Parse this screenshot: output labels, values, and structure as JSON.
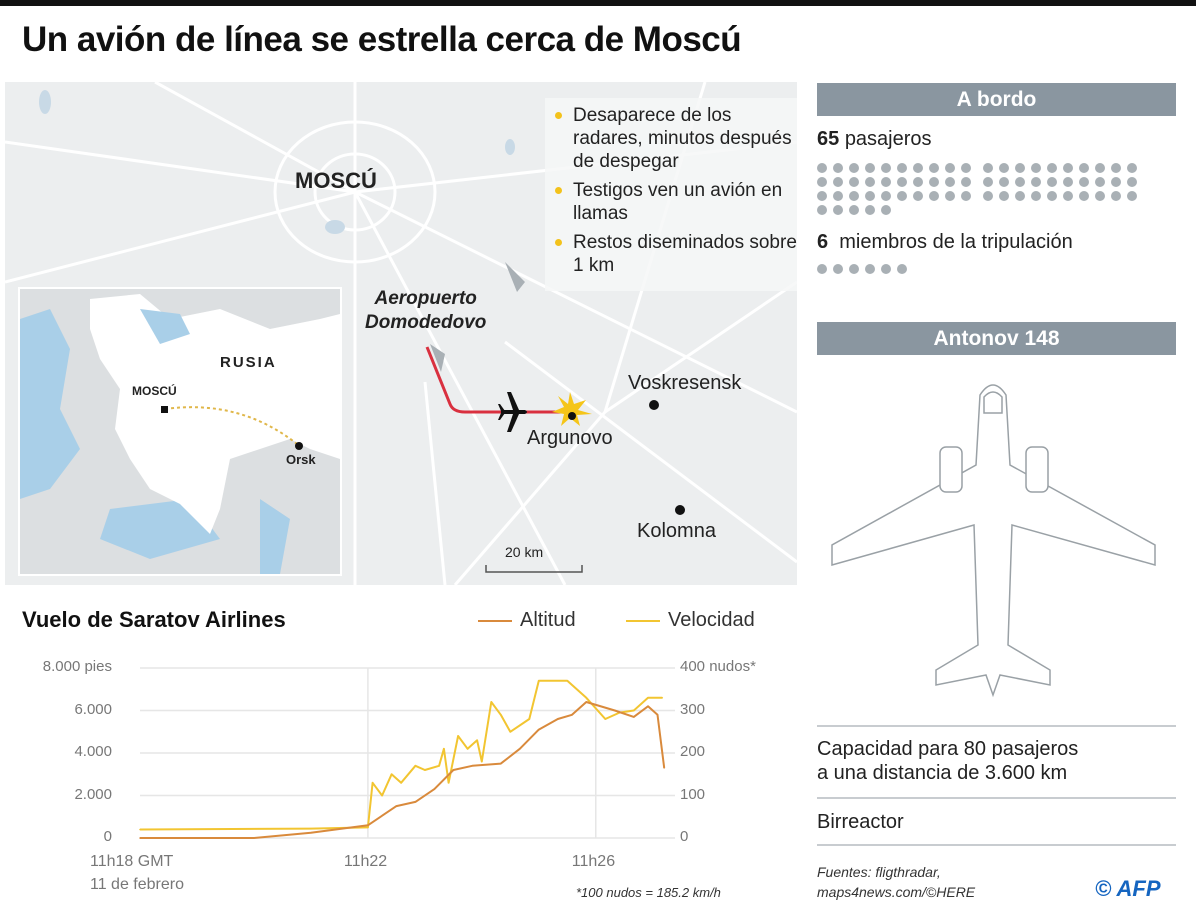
{
  "title": "Un avión de línea se estrella cerca de Moscú",
  "map": {
    "city_label": "MOSCÚ",
    "airport_label_line1": "Aeropuerto",
    "airport_label_line2": "Domodedovo",
    "places": [
      "Voskresensk",
      "Argunovo",
      "Kolomna"
    ],
    "scale_label": "20 km",
    "facts": [
      "Desaparece de los radares, minutos después de despegar",
      "Testigos ven un avión en llamas",
      "Restos diseminados sobre 1 km"
    ],
    "route_color": "#d9303f",
    "crash_color": "#f5c518",
    "inset": {
      "country_label": "RUSIA",
      "origin_label": "MOSCÚ",
      "destination_label": "Orsk"
    }
  },
  "on_board": {
    "header": "A bordo",
    "passengers_count": "65",
    "passengers_label": "pasajeros",
    "passengers_dots": 65,
    "crew_count": "6",
    "crew_label": "miembros de la tripulación",
    "crew_dots": 6
  },
  "aircraft": {
    "header": "Antonov 148",
    "capacity_line1": "Capacidad para 80 pasajeros",
    "capacity_line2": "a una distancia de 3.600 km",
    "type": "Birreactor"
  },
  "sources": {
    "line1": "Fuentes: fligthradar,",
    "line2": "maps4news.com/©HERE",
    "credit": "© AFP"
  },
  "chart_data": {
    "type": "line",
    "title": "Vuelo de Saratov Airlines",
    "x_tick_labels": [
      "11h18 GMT",
      "11h22",
      "11h26"
    ],
    "x_tick_sublabel": "11 de febrero",
    "x_ticks": [
      "11:18:00",
      "11:22:00",
      "11:26:00"
    ],
    "xlim": [
      "11:18:00",
      "11:27:15"
    ],
    "y_left": {
      "label": "pies",
      "ticks": [
        "0",
        "2.000",
        "4.000",
        "6.000",
        "8.000 pies"
      ],
      "range": [
        0,
        8000
      ]
    },
    "y_right": {
      "label": "nudos*",
      "ticks": [
        "0",
        "100",
        "200",
        "300",
        "400 nudos*"
      ],
      "range": [
        0,
        400
      ]
    },
    "footnote": "*100 nudos = 185.2 km/h",
    "grid": true,
    "legend": "top-right",
    "series": [
      {
        "name": "Altitud",
        "axis": "left",
        "color": "#d98a3c",
        "x": [
          "11:18:00",
          "11:20:00",
          "11:21:00",
          "11:22:00",
          "11:22:30",
          "11:22:50",
          "11:23:10",
          "11:23:30",
          "11:23:50",
          "11:24:20",
          "11:24:40",
          "11:25:00",
          "11:25:20",
          "11:25:35",
          "11:25:50",
          "11:26:20",
          "11:26:40",
          "11:26:55",
          "11:27:05",
          "11:27:12"
        ],
        "values": [
          0,
          0,
          250,
          600,
          1500,
          1700,
          2300,
          3200,
          3400,
          3500,
          4200,
          5100,
          5600,
          5800,
          6400,
          6000,
          5700,
          6200,
          5800,
          3300
        ]
      },
      {
        "name": "Velocidad",
        "axis": "right",
        "color": "#f2c531",
        "x": [
          "11:18:00",
          "11:21:00",
          "11:22:00",
          "11:22:05",
          "11:22:15",
          "11:22:25",
          "11:22:35",
          "11:22:50",
          "11:23:00",
          "11:23:15",
          "11:23:20",
          "11:23:25",
          "11:23:35",
          "11:23:45",
          "11:23:55",
          "11:24:00",
          "11:24:10",
          "11:24:20",
          "11:24:30",
          "11:24:50",
          "11:25:00",
          "11:25:30",
          "11:25:50",
          "11:26:10",
          "11:26:25",
          "11:26:40",
          "11:26:55",
          "11:27:10"
        ],
        "values": [
          20,
          22,
          25,
          130,
          100,
          150,
          130,
          170,
          160,
          170,
          210,
          130,
          240,
          210,
          230,
          180,
          320,
          290,
          250,
          280,
          370,
          370,
          330,
          280,
          295,
          300,
          330,
          330
        ]
      }
    ]
  }
}
